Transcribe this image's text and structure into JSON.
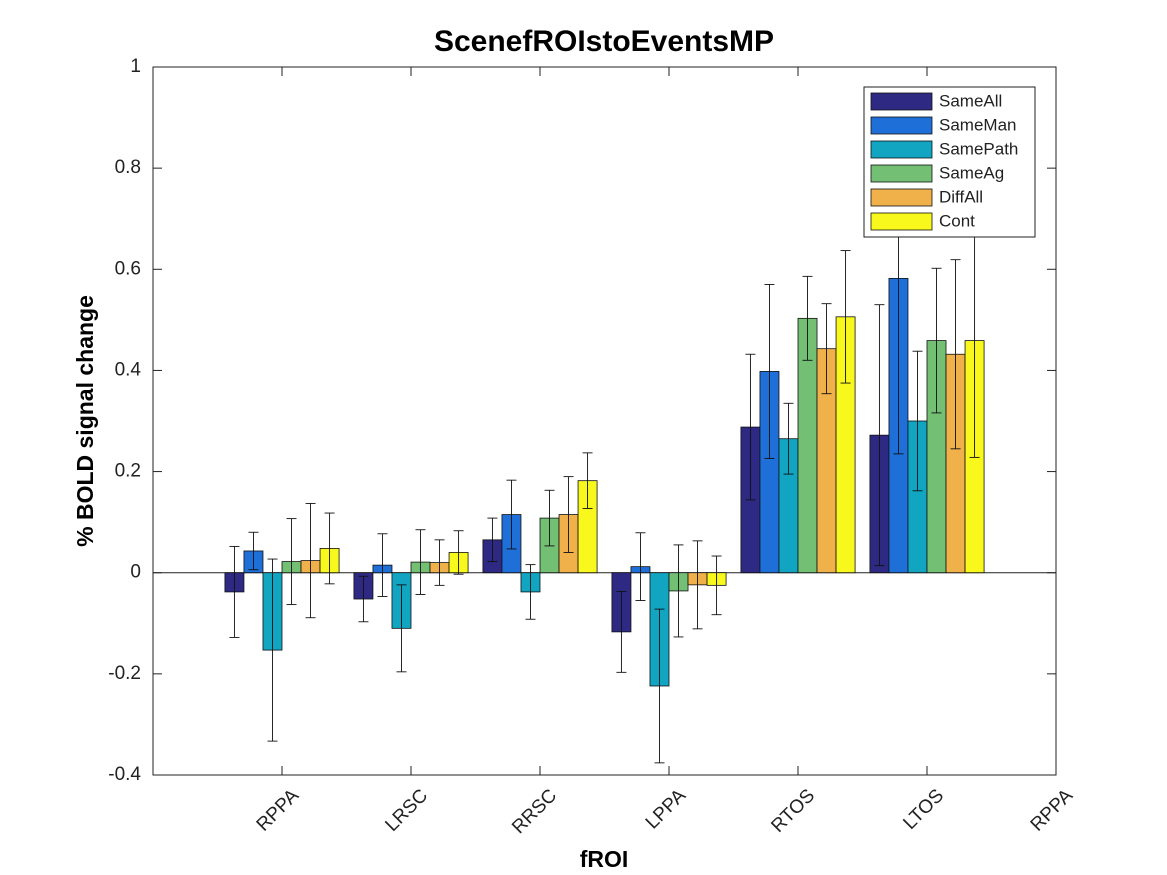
{
  "chart_data": {
    "type": "bar",
    "title": "ScenefROIstoEventsMP",
    "x_label": "fROI",
    "y_label": "% BOLD signal change",
    "categories": [
      "RPPA",
      "LRSC",
      "RRSC",
      "LPPA",
      "RTOS",
      "LTOS",
      "RPPA"
    ],
    "xlim": [
      0,
      7
    ],
    "ylim": [
      -0.4,
      1
    ],
    "yticks": [
      -0.4,
      -0.2,
      0,
      0.2,
      0.4,
      0.6,
      0.8,
      1
    ],
    "legend": "northeast",
    "series": [
      {
        "name": "SameAll",
        "color": "#2e2a84",
        "values": [
          -0.038,
          -0.052,
          0.065,
          -0.117,
          0.288,
          0.272,
          null
        ],
        "errors": [
          0.09,
          0.045,
          0.043,
          0.08,
          0.144,
          0.258,
          null
        ]
      },
      {
        "name": "SameMan",
        "color": "#1f6fd8",
        "values": [
          0.043,
          0.015,
          0.115,
          0.012,
          0.398,
          0.582,
          null
        ],
        "errors": [
          0.037,
          0.062,
          0.068,
          0.067,
          0.172,
          0.347,
          null
        ]
      },
      {
        "name": "SamePath",
        "color": "#12a5c2",
        "values": [
          -0.153,
          -0.11,
          -0.038,
          -0.224,
          0.265,
          0.3,
          null
        ],
        "errors": [
          0.18,
          0.086,
          0.054,
          0.152,
          0.07,
          0.138,
          null
        ]
      },
      {
        "name": "SameAg",
        "color": "#73bf73",
        "values": [
          0.022,
          0.021,
          0.108,
          -0.036,
          0.503,
          0.459,
          null
        ],
        "errors": [
          0.085,
          0.064,
          0.055,
          0.091,
          0.083,
          0.143,
          null
        ]
      },
      {
        "name": "DiffAll",
        "color": "#f0b14a",
        "values": [
          0.024,
          0.02,
          0.115,
          -0.024,
          0.443,
          0.432,
          null
        ],
        "errors": [
          0.113,
          0.045,
          0.075,
          0.087,
          0.089,
          0.187,
          null
        ]
      },
      {
        "name": "Cont",
        "color": "#f8f81d",
        "values": [
          0.048,
          0.04,
          0.182,
          -0.025,
          0.506,
          0.459,
          null
        ],
        "errors": [
          0.07,
          0.043,
          0.055,
          0.058,
          0.131,
          0.231,
          null
        ]
      }
    ]
  }
}
